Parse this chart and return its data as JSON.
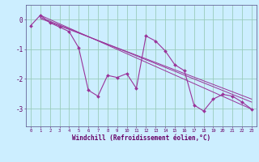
{
  "background_color": "#cceeff",
  "grid_color": "#99ccbb",
  "line_color": "#993399",
  "marker_color": "#993399",
  "xlabel": "Windchill (Refroidissement éolien,°C)",
  "xlabel_color": "#660066",
  "tick_color": "#660066",
  "xlim": [
    -0.5,
    23.5
  ],
  "ylim": [
    -3.6,
    0.5
  ],
  "yticks": [
    0,
    -1,
    -2,
    -3
  ],
  "xticks": [
    0,
    1,
    2,
    3,
    4,
    5,
    6,
    7,
    8,
    9,
    10,
    11,
    12,
    13,
    14,
    15,
    16,
    17,
    18,
    19,
    20,
    21,
    22,
    23
  ],
  "series": [
    [
      0.0,
      -0.2
    ],
    [
      1.0,
      0.15
    ],
    [
      2.0,
      -0.1
    ],
    [
      3.0,
      -0.25
    ],
    [
      4.0,
      -0.4
    ],
    [
      5.0,
      -0.95
    ],
    [
      6.0,
      -2.38
    ],
    [
      7.0,
      -2.58
    ],
    [
      8.0,
      -1.88
    ],
    [
      9.0,
      -1.95
    ],
    [
      10.0,
      -1.82
    ],
    [
      11.0,
      -2.32
    ],
    [
      12.0,
      -0.55
    ],
    [
      13.0,
      -0.72
    ],
    [
      14.0,
      -1.05
    ],
    [
      15.0,
      -1.52
    ],
    [
      16.0,
      -1.72
    ],
    [
      17.0,
      -2.88
    ],
    [
      18.0,
      -3.08
    ],
    [
      19.0,
      -2.68
    ],
    [
      20.0,
      -2.52
    ],
    [
      21.0,
      -2.58
    ],
    [
      22.0,
      -2.78
    ],
    [
      23.0,
      -3.02
    ]
  ],
  "line2": [
    [
      1.0,
      0.15
    ],
    [
      23.0,
      -3.02
    ]
  ],
  "line3": [
    [
      1.0,
      0.08
    ],
    [
      23.0,
      -2.78
    ]
  ],
  "line4": [
    [
      1.0,
      0.04
    ],
    [
      23.0,
      -2.68
    ]
  ]
}
